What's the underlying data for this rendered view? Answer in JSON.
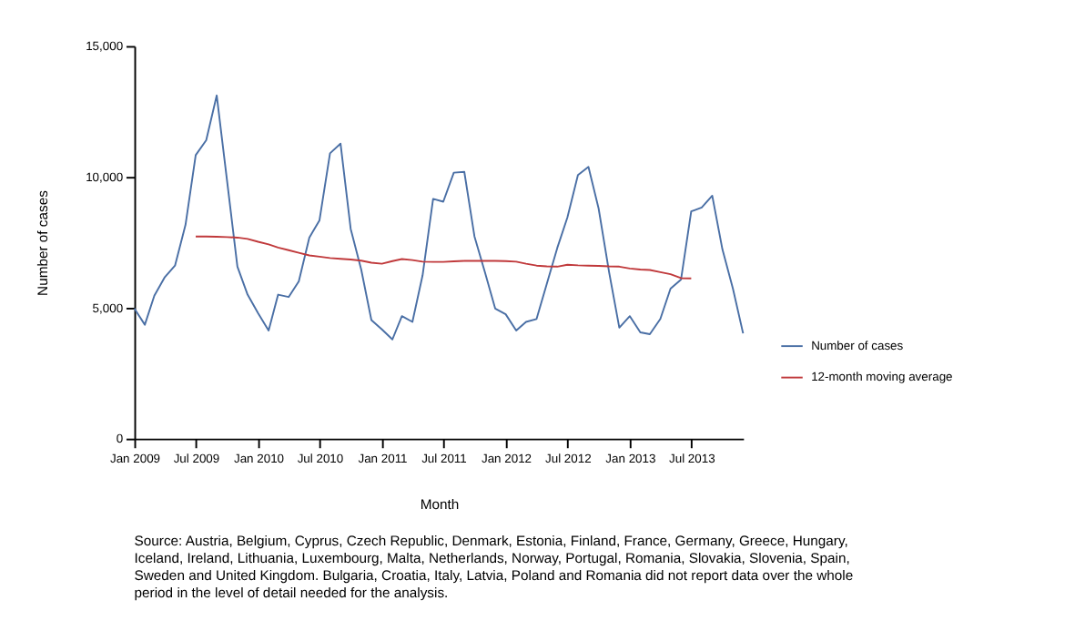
{
  "chart_data": {
    "type": "line",
    "xlabel": "Month",
    "ylabel": "Number of cases",
    "x": [
      "2009-01",
      "2009-02",
      "2009-03",
      "2009-04",
      "2009-05",
      "2009-06",
      "2009-07",
      "2009-08",
      "2009-09",
      "2009-10",
      "2009-11",
      "2009-12",
      "2010-01",
      "2010-02",
      "2010-03",
      "2010-04",
      "2010-05",
      "2010-06",
      "2010-07",
      "2010-08",
      "2010-09",
      "2010-10",
      "2010-11",
      "2010-12",
      "2011-01",
      "2011-02",
      "2011-03",
      "2011-04",
      "2011-05",
      "2011-06",
      "2011-07",
      "2011-08",
      "2011-09",
      "2011-10",
      "2011-11",
      "2011-12",
      "2012-01",
      "2012-02",
      "2012-03",
      "2012-04",
      "2012-05",
      "2012-06",
      "2012-07",
      "2012-08",
      "2012-09",
      "2012-10",
      "2012-11",
      "2012-12",
      "2013-01",
      "2013-02",
      "2013-03",
      "2013-04",
      "2013-05",
      "2013-06",
      "2013-07",
      "2013-08",
      "2013-09",
      "2013-10",
      "2013-11",
      "2013-12"
    ],
    "series": [
      {
        "name": "Number of cases",
        "color": "#4a6fa5",
        "values": [
          4970,
          4350,
          5460,
          6170,
          6610,
          8170,
          10830,
          11400,
          13110,
          9900,
          6570,
          5500,
          4790,
          4130,
          5500,
          5410,
          6010,
          7680,
          8340,
          10900,
          11270,
          8010,
          6460,
          4530,
          4170,
          3790,
          4680,
          4460,
          6240,
          9160,
          9050,
          10160,
          10190,
          7720,
          6350,
          4970,
          4750,
          4130,
          4460,
          4570,
          5900,
          7280,
          8450,
          10070,
          10380,
          8790,
          6350,
          4240,
          4680,
          4060,
          3990,
          4570,
          5730,
          6080,
          8680,
          8830,
          9280,
          7230,
          5730,
          4020
        ]
      },
      {
        "name": "12-month moving average",
        "color": "#c0393b",
        "values": [
          null,
          null,
          null,
          null,
          null,
          null,
          7720,
          7720,
          7710,
          7700,
          7680,
          7630,
          7520,
          7420,
          7300,
          7200,
          7100,
          7000,
          6950,
          6900,
          6870,
          6840,
          6800,
          6720,
          6680,
          6780,
          6860,
          6820,
          6760,
          6750,
          6750,
          6770,
          6790,
          6790,
          6790,
          6790,
          6780,
          6760,
          6680,
          6610,
          6580,
          6570,
          6640,
          6620,
          6610,
          6600,
          6580,
          6570,
          6500,
          6460,
          6440,
          6360,
          6280,
          6130,
          6120,
          null,
          null,
          null,
          null,
          null
        ]
      }
    ],
    "xlim": [
      "2009-01",
      "2013-12"
    ],
    "xticks": [
      {
        "value": "2009-01",
        "label": "Jan 2009"
      },
      {
        "value": "2009-07",
        "label": "Jul 2009"
      },
      {
        "value": "2010-01",
        "label": "Jan 2010"
      },
      {
        "value": "2010-07",
        "label": "Jul 2010"
      },
      {
        "value": "2011-01",
        "label": "Jan 2011"
      },
      {
        "value": "2011-07",
        "label": "Jul 2011"
      },
      {
        "value": "2012-01",
        "label": "Jan 2012"
      },
      {
        "value": "2012-07",
        "label": "Jul 2012"
      },
      {
        "value": "2013-01",
        "label": "Jan 2013"
      },
      {
        "value": "2013-07",
        "label": "Jul 2013"
      }
    ],
    "ylim": [
      0,
      15000
    ],
    "yticks": [
      {
        "value": 0,
        "label": "0"
      },
      {
        "value": 5000,
        "label": "5,000"
      },
      {
        "value": 10000,
        "label": "10,000"
      },
      {
        "value": 15000,
        "label": "15,000"
      }
    ],
    "grid": false,
    "legend": "right",
    "marker": "none",
    "line_style": "solid",
    "annotations": [
      "Source: Austria, Belgium, Cyprus, Czech Republic, Denmark, Estonia, Finland, France, Germany, Greece, Hungary, Iceland, Ireland, Lithuania, Luxembourg, Malta, Netherlands, Norway, Portugal, Romania, Slovakia, Slovenia, Spain, Sweden and United Kingdom. Bulgaria, Croatia, Italy, Latvia, Poland and Romania did not report data over the whole period in the level of detail needed for the analysis."
    ]
  }
}
